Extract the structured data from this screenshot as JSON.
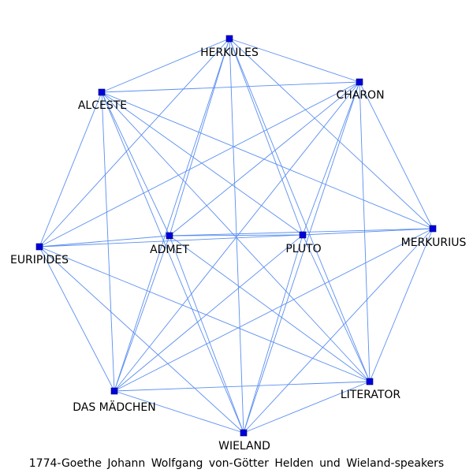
{
  "graph": {
    "caption": "1774-Goethe Johann Wolfgang von-Götter Helden und Wieland-speakers",
    "edge_color": "#5b8ff0",
    "node_color": "#0000dd",
    "nodes": [
      {
        "id": "herkules",
        "label": "HERKULES"
      },
      {
        "id": "charon",
        "label": "CHARON"
      },
      {
        "id": "alceste",
        "label": "ALCESTE"
      },
      {
        "id": "admet",
        "label": "ADMET"
      },
      {
        "id": "pluto",
        "label": "PLUTO"
      },
      {
        "id": "merkurius",
        "label": "MERKURIUS"
      },
      {
        "id": "euripides",
        "label": "EURIPIDES"
      },
      {
        "id": "literator",
        "label": "LITERATOR"
      },
      {
        "id": "das-madchen",
        "label": "DAS MÄDCHEN"
      },
      {
        "id": "wieland",
        "label": "WIELAND"
      }
    ],
    "edges": [
      [
        "herkules",
        "charon"
      ],
      [
        "herkules",
        "alceste"
      ],
      [
        "herkules",
        "admet"
      ],
      [
        "herkules",
        "pluto"
      ],
      [
        "herkules",
        "merkurius"
      ],
      [
        "herkules",
        "euripides"
      ],
      [
        "herkules",
        "literator"
      ],
      [
        "herkules",
        "wieland"
      ],
      [
        "herkules",
        "das-madchen"
      ],
      [
        "charon",
        "alceste"
      ],
      [
        "charon",
        "admet"
      ],
      [
        "charon",
        "pluto"
      ],
      [
        "charon",
        "merkurius"
      ],
      [
        "charon",
        "euripides"
      ],
      [
        "charon",
        "literator"
      ],
      [
        "charon",
        "das-madchen"
      ],
      [
        "charon",
        "wieland"
      ],
      [
        "alceste",
        "admet"
      ],
      [
        "alceste",
        "pluto"
      ],
      [
        "alceste",
        "merkurius"
      ],
      [
        "alceste",
        "euripides"
      ],
      [
        "alceste",
        "literator"
      ],
      [
        "alceste",
        "das-madchen"
      ],
      [
        "alceste",
        "wieland"
      ],
      [
        "admet",
        "pluto"
      ],
      [
        "admet",
        "merkurius"
      ],
      [
        "admet",
        "euripides"
      ],
      [
        "admet",
        "literator"
      ],
      [
        "admet",
        "das-madchen"
      ],
      [
        "admet",
        "wieland"
      ],
      [
        "pluto",
        "merkurius"
      ],
      [
        "pluto",
        "euripides"
      ],
      [
        "pluto",
        "literator"
      ],
      [
        "pluto",
        "das-madchen"
      ],
      [
        "pluto",
        "wieland"
      ],
      [
        "merkurius",
        "literator"
      ],
      [
        "merkurius",
        "das-madchen"
      ],
      [
        "merkurius",
        "wieland"
      ],
      [
        "euripides",
        "literator"
      ],
      [
        "euripides",
        "das-madchen"
      ],
      [
        "euripides",
        "wieland"
      ],
      [
        "literator",
        "das-madchen"
      ],
      [
        "literator",
        "wieland"
      ],
      [
        "das-madchen",
        "wieland"
      ]
    ]
  }
}
